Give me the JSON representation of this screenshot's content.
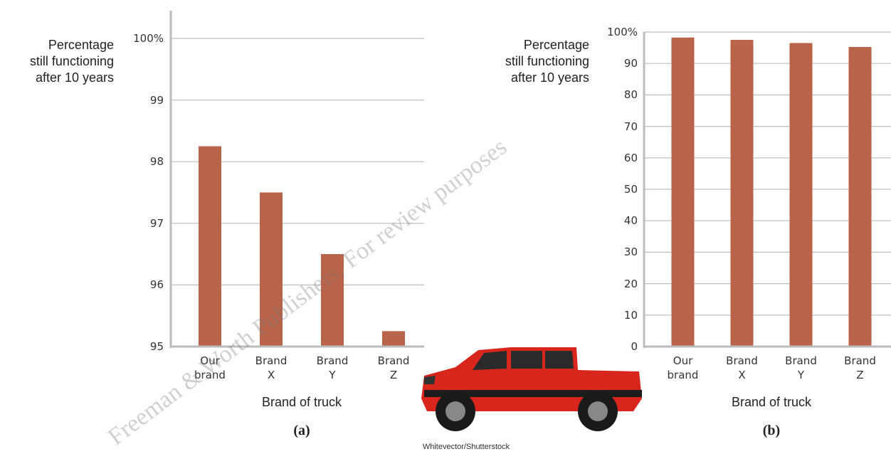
{
  "chart_data": [
    {
      "type": "bar",
      "ylabel": "Percentage\nstill functioning\nafter 10 years",
      "xlabel": "Brand of truck",
      "panel_label": "(a)",
      "categories": [
        "Our\nbrand",
        "Brand\nX",
        "Brand\nY",
        "Brand\nZ"
      ],
      "values": [
        98.25,
        97.5,
        96.5,
        95.25
      ],
      "color": "#b8634a",
      "ylim": [
        95,
        100.45
      ],
      "yticks": [
        95,
        96,
        97,
        98,
        99,
        {
          "value": 100,
          "label": "100%"
        }
      ],
      "grid": true
    },
    {
      "type": "bar",
      "ylabel": "Percentage\nstill functioning\nafter 10 years",
      "xlabel": "Brand of truck",
      "panel_label": "(b)",
      "categories": [
        "Our\nbrand",
        "Brand\nX",
        "Brand\nY",
        "Brand\nZ"
      ],
      "values": [
        98.25,
        97.5,
        96.5,
        95.25
      ],
      "color": "#b8634a",
      "ylim": [
        0,
        100
      ],
      "yticks": [
        0,
        10,
        20,
        30,
        40,
        50,
        60,
        70,
        80,
        90,
        {
          "value": 100,
          "label": "100%"
        }
      ],
      "grid": true
    }
  ],
  "credit": "Whitevector/Shutterstock",
  "watermark": "Freeman & Worth Publishers. For review purposes"
}
